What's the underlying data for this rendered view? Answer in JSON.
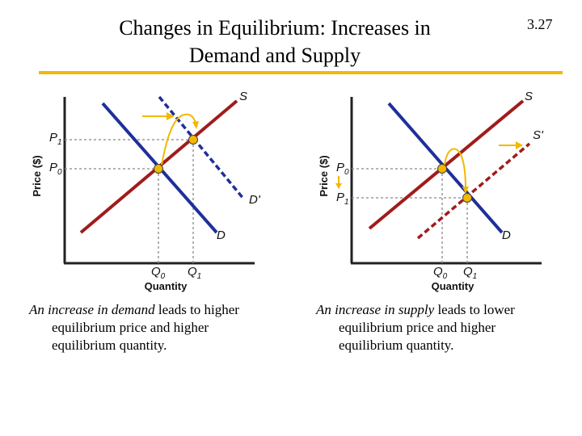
{
  "slide": {
    "title_line1": "Changes in Equilibrium: Increases in",
    "title_line2": "Demand and Supply",
    "number": "3.27"
  },
  "colors": {
    "demand": "#1f2f9a",
    "supply": "#a01c1c",
    "accent": "#f2b800",
    "axis": "#222222"
  },
  "panels": [
    {
      "id": "demand-increase",
      "y_axis_label": "Price ($)",
      "x_axis_label": "Quantity",
      "curves": {
        "supply": "S",
        "demand": "D",
        "shifted": "D'"
      },
      "price_labels": [
        "P",
        "1",
        "P",
        "0"
      ],
      "quantity_labels": [
        "Q",
        "0",
        "Q",
        "1"
      ],
      "caption_italic": "An increase in demand",
      "caption_first_rest": " leads to higher",
      "caption_line2": "equilibrium price and higher",
      "caption_line3": "equilibrium quantity."
    },
    {
      "id": "supply-increase",
      "y_axis_label": "Price ($)",
      "x_axis_label": "Quantity",
      "curves": {
        "supply": "S",
        "demand": "D",
        "shifted": "S'"
      },
      "price_labels": [
        "P",
        "0",
        "P",
        "1"
      ],
      "quantity_labels": [
        "Q",
        "0",
        "Q",
        "1"
      ],
      "caption_italic": "An increase in supply",
      "caption_first_rest": " leads to lower",
      "caption_line2": "equilibrium price and higher",
      "caption_line3": "equilibrium quantity."
    }
  ]
}
